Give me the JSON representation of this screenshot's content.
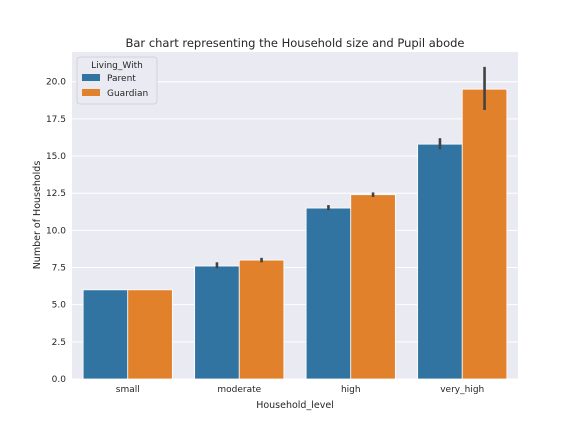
{
  "chart_data": {
    "type": "bar",
    "title": "Bar chart representing the Household size and Pupil abode",
    "xlabel": "Household_level",
    "ylabel": "Number of Households",
    "categories": [
      "small",
      "moderate",
      "high",
      "very_high"
    ],
    "series": [
      {
        "name": "Parent",
        "color": "#3274a1",
        "values": [
          6.0,
          7.6,
          11.5,
          15.8
        ],
        "ci": [
          [
            6.0,
            6.0
          ],
          [
            7.45,
            7.85
          ],
          [
            11.35,
            11.7
          ],
          [
            15.45,
            16.2
          ]
        ]
      },
      {
        "name": "Guardian",
        "color": "#e1812c",
        "values": [
          6.0,
          8.0,
          12.4,
          19.5
        ],
        "ci": [
          [
            6.0,
            6.0
          ],
          [
            7.85,
            8.15
          ],
          [
            12.25,
            12.55
          ],
          [
            18.1,
            21.0
          ]
        ]
      }
    ],
    "legend": {
      "title": "Living_With",
      "placement": "top-left"
    },
    "ylim": [
      0,
      22
    ],
    "yticks": [
      "0.0",
      "2.5",
      "5.0",
      "7.5",
      "10.0",
      "12.5",
      "15.0",
      "17.5",
      "20.0"
    ],
    "grid": true,
    "style": {
      "background": "#eaeaf2",
      "grid_color": "#ffffff",
      "error_color": "#424242"
    }
  }
}
